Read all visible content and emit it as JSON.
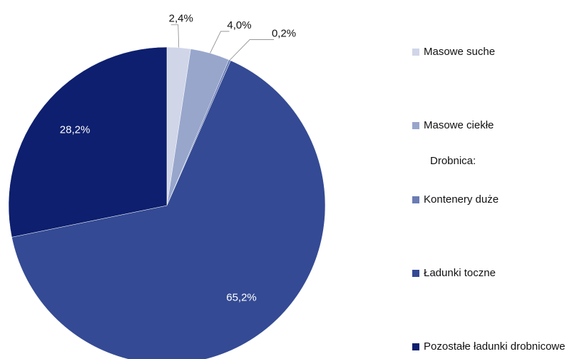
{
  "chart_data": {
    "type": "pie",
    "categories": [
      "Masowe suche",
      "Masowe ciekłe",
      "Kontenery duże",
      "Ładunki toczne",
      "Pozostałe ładunki drobnicowe"
    ],
    "values": [
      2.4,
      4.0,
      0.2,
      65.2,
      28.2
    ],
    "value_labels": [
      "2,4%",
      "4,0%",
      "0,2%",
      "65,2%",
      "28,2%"
    ],
    "colors": [
      "#d0d5e8",
      "#98a6cc",
      "#6a7cb4",
      "#344a94",
      "#0d1f6e"
    ],
    "legend_heading": "Drobnica:",
    "legend": "right"
  }
}
